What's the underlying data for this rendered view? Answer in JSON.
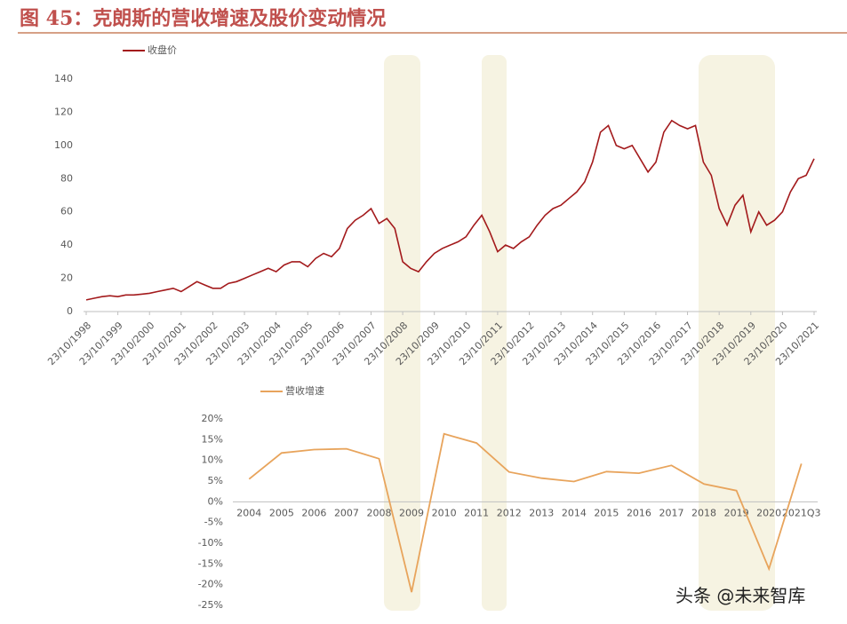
{
  "title": "图 45：克朗斯的营收增速及股价变动情况",
  "watermark": "头条 @未来智库",
  "chart_data": [
    {
      "type": "line",
      "x": [
        "23/10/1998",
        "23/01/1999",
        "23/04/1999",
        "23/07/1999",
        "23/10/1999",
        "23/01/2000",
        "23/04/2000",
        "23/07/2000",
        "23/10/2000",
        "23/01/2001",
        "23/04/2001",
        "23/07/2001",
        "23/10/2001",
        "23/01/2002",
        "23/04/2002",
        "23/07/2002",
        "23/10/2002",
        "23/01/2003",
        "23/04/2003",
        "23/07/2003",
        "23/10/2003",
        "23/01/2004",
        "23/04/2004",
        "23/07/2004",
        "23/10/2004",
        "23/01/2005",
        "23/04/2005",
        "23/07/2005",
        "23/10/2005",
        "23/01/2006",
        "23/04/2006",
        "23/07/2006",
        "23/10/2006",
        "23/01/2007",
        "23/04/2007",
        "23/07/2007",
        "23/10/2007",
        "23/01/2008",
        "23/04/2008",
        "23/07/2008",
        "23/10/2008",
        "23/01/2009",
        "23/04/2009",
        "23/07/2009",
        "23/10/2009",
        "23/01/2010",
        "23/04/2010",
        "23/07/2010",
        "23/10/2010",
        "23/01/2011",
        "23/04/2011",
        "23/07/2011",
        "23/10/2011",
        "23/01/2012",
        "23/04/2012",
        "23/07/2012",
        "23/10/2012",
        "23/01/2013",
        "23/04/2013",
        "23/07/2013",
        "23/10/2013",
        "23/01/2014",
        "23/04/2014",
        "23/07/2014",
        "23/10/2014",
        "23/01/2015",
        "23/04/2015",
        "23/07/2015",
        "23/10/2015",
        "23/01/2016",
        "23/04/2016",
        "23/07/2016",
        "23/10/2016",
        "23/01/2017",
        "23/04/2017",
        "23/07/2017",
        "23/10/2017",
        "23/01/2018",
        "23/04/2018",
        "23/07/2018",
        "23/10/2018",
        "23/01/2019",
        "23/04/2019",
        "23/07/2019",
        "23/10/2019",
        "23/01/2020",
        "23/04/2020",
        "23/07/2020",
        "23/10/2020",
        "23/01/2021",
        "23/04/2021",
        "23/07/2021",
        "23/10/2021"
      ],
      "series": [
        {
          "name": "收盘价",
          "color": "#a31a1c",
          "values": [
            7,
            8,
            9,
            9.5,
            9,
            10,
            10,
            10.5,
            11,
            12,
            13,
            14,
            12,
            15,
            18,
            16,
            14,
            14,
            17,
            18,
            20,
            22,
            24,
            26,
            24,
            28,
            30,
            30,
            27,
            32,
            35,
            33,
            38,
            50,
            55,
            58,
            62,
            53,
            56,
            50,
            30,
            26,
            24,
            30,
            35,
            38,
            40,
            42,
            45,
            52,
            58,
            48,
            36,
            40,
            38,
            42,
            45,
            52,
            58,
            62,
            64,
            68,
            72,
            78,
            90,
            108,
            112,
            100,
            98,
            100,
            92,
            84,
            90,
            108,
            115,
            112,
            110,
            112,
            90,
            82,
            62,
            52,
            64,
            70,
            48,
            60,
            52,
            55,
            60,
            72,
            80,
            82,
            92
          ]
        }
      ],
      "xlim": [
        "23/10/1998",
        "23/10/2021"
      ],
      "xticks": [
        "23/10/1998",
        "23/10/1999",
        "23/10/2000",
        "23/10/2001",
        "23/10/2002",
        "23/10/2003",
        "23/10/2004",
        "23/10/2005",
        "23/10/2006",
        "23/10/2007",
        "23/10/2008",
        "23/10/2009",
        "23/10/2010",
        "23/10/2011",
        "23/10/2012",
        "23/10/2013",
        "23/10/2014",
        "23/10/2015",
        "23/10/2016",
        "23/10/2017",
        "23/10/2018",
        "23/10/2019",
        "23/10/2020",
        "23/10/2021"
      ],
      "ylim": [
        0,
        140
      ],
      "yticks": [
        0,
        20,
        40,
        60,
        80,
        100,
        120,
        140
      ],
      "legend": "top-left"
    },
    {
      "type": "line",
      "categories": [
        "2004",
        "2005",
        "2006",
        "2007",
        "2008",
        "2009",
        "2010",
        "2011",
        "2012",
        "2013",
        "2014",
        "2015",
        "2016",
        "2017",
        "2018",
        "2019",
        "2020",
        "2021Q3"
      ],
      "series": [
        {
          "name": "营收增速",
          "color": "#e8a45c",
          "values": [
            5.5,
            11.8,
            12.6,
            12.8,
            10.4,
            -21.8,
            16.4,
            14.2,
            7.2,
            5.7,
            4.9,
            7.3,
            6.9,
            8.8,
            4.3,
            2.7,
            -16.2,
            9.2
          ]
        }
      ],
      "ylim": [
        -25,
        20
      ],
      "yticks": [
        {
          "value": -25,
          "label": "-25%"
        },
        {
          "value": -20,
          "label": "-20%"
        },
        {
          "value": -15,
          "label": "-15%"
        },
        {
          "value": -10,
          "label": "-10%"
        },
        {
          "value": -5,
          "label": "-5%"
        },
        {
          "value": 0,
          "label": "0%"
        },
        {
          "value": 5,
          "label": "5%"
        },
        {
          "value": 10,
          "label": "10%"
        },
        {
          "value": 15,
          "label": "15%"
        },
        {
          "value": 20,
          "label": "20%"
        }
      ],
      "legend": "top-left"
    }
  ]
}
